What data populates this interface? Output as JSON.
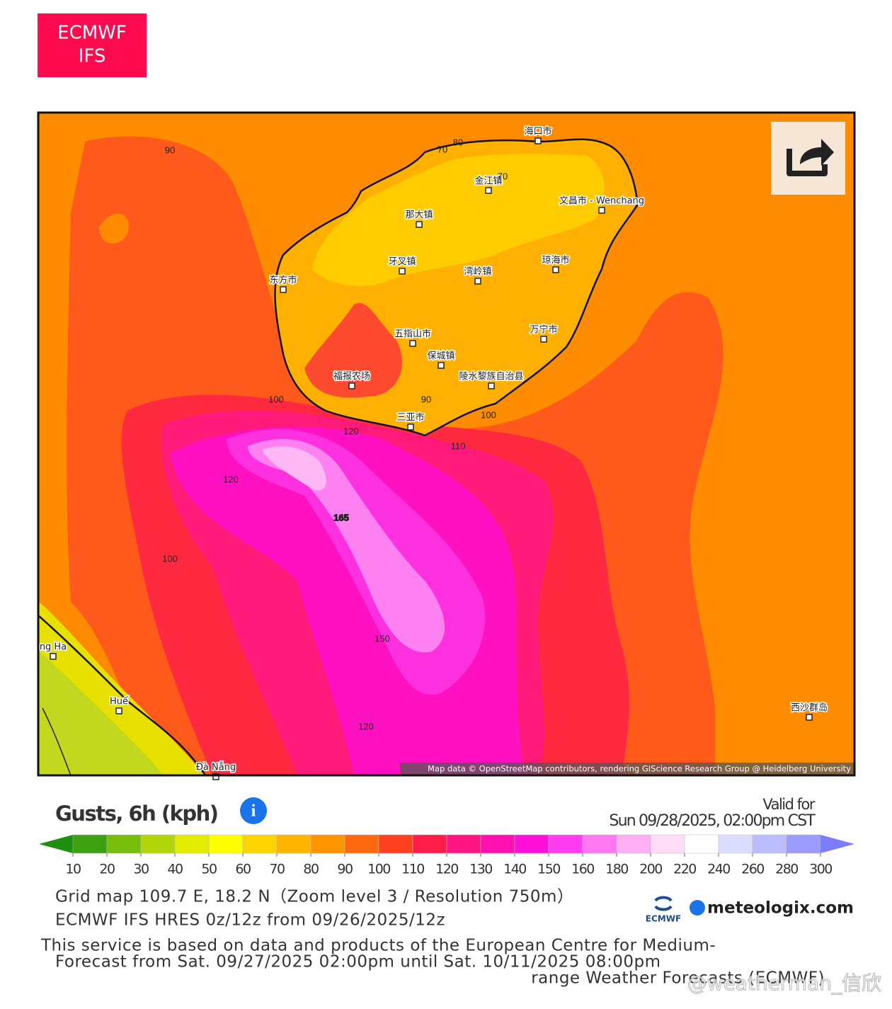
{
  "badge": {
    "line1": "ECMWF",
    "line2": "IFS"
  },
  "map": {
    "places": [
      "海口市",
      "金江镇",
      "文昌市 - Wenchang",
      "那大镇",
      "牙叉镇",
      "湾岭镇",
      "琼海市",
      "东方市",
      "五指山市",
      "万宁市",
      "保城镇",
      "福报农场",
      "陵水黎族自治县",
      "三亚市",
      "ng Ha",
      "Huế",
      "Đà Nẵng",
      "西沙群岛"
    ],
    "contour_labels": [
      90,
      80,
      70,
      70,
      100,
      90,
      100,
      120,
      110,
      120,
      165,
      100,
      150,
      120
    ],
    "attribution": "Map data © OpenStreetMap contributors, rendering GIScience Research Group @ Heidelberg University"
  },
  "legend": {
    "title": "Gusts, 6h (kph)",
    "valid_label": "Valid for",
    "valid_time": "Sun 09/28/2025, 02:00pm CST",
    "ticks": [
      10,
      20,
      30,
      40,
      50,
      60,
      70,
      80,
      90,
      100,
      110,
      120,
      130,
      140,
      150,
      160,
      180,
      200,
      220,
      240,
      260,
      280,
      300
    ],
    "colors": [
      "#1f8f12",
      "#3ea010",
      "#78bc0c",
      "#b2d40a",
      "#e2ec00",
      "#ffff00",
      "#ffd400",
      "#ffb400",
      "#ff9400",
      "#ff6a10",
      "#ff4020",
      "#ff1c48",
      "#ff1480",
      "#ff10b0",
      "#ff10d8",
      "#ff3cf0",
      "#ff78f2",
      "#ffb0f4",
      "#ffdcf8",
      "#ffffff",
      "#dcdcff",
      "#bcbcff",
      "#9c9cff",
      "#7c7cff"
    ]
  },
  "info": {
    "grid": "Grid map 109.7 E, 18.2 N（Zoom level 3 / Resolution 750m）",
    "run": "ECMWF IFS HRES 0z/12z from 09/26/2025/12z",
    "service1": "This service is based on data and products of the European Centre for Medium-",
    "service2": "range Weather Forecasts (ECMWF)",
    "forecast": "Forecast from Sat. 09/27/2025 02:00pm until Sat. 10/11/2025 08:00pm",
    "ecmwf_logo": "ECMWF",
    "site": "meteologix.com",
    "watermark": "@weatherman_信欣"
  }
}
